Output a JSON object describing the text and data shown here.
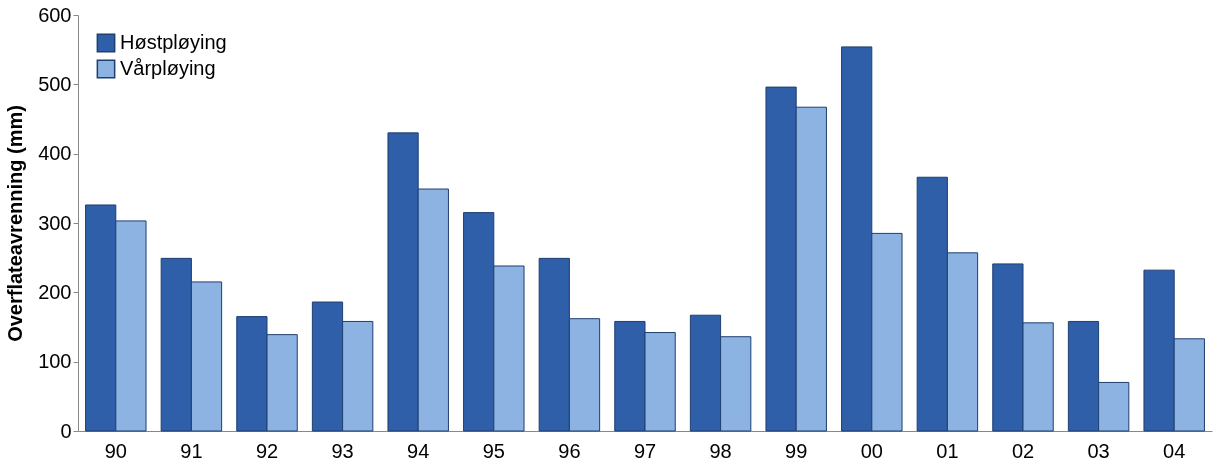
{
  "chart_data": {
    "type": "bar",
    "ylabel": "Overflateavrenning (mm)",
    "categories": [
      "90",
      "91",
      "92",
      "93",
      "94",
      "95",
      "96",
      "97",
      "98",
      "99",
      "00",
      "01",
      "02",
      "03",
      "04"
    ],
    "series": [
      {
        "name": "Høstpløying",
        "color": "#2e5fa8",
        "values": [
          326,
          249,
          165,
          186,
          430,
          315,
          249,
          158,
          167,
          496,
          554,
          366,
          241,
          158,
          232
        ]
      },
      {
        "name": "Vårpløying",
        "color": "#8db3e2",
        "values": [
          303,
          215,
          139,
          158,
          349,
          238,
          162,
          142,
          136,
          467,
          285,
          257,
          156,
          70,
          133
        ]
      }
    ],
    "ylim": [
      0,
      600
    ],
    "yticks": [
      0,
      100,
      200,
      300,
      400,
      500,
      600
    ],
    "grid": false,
    "legend": "top left"
  }
}
